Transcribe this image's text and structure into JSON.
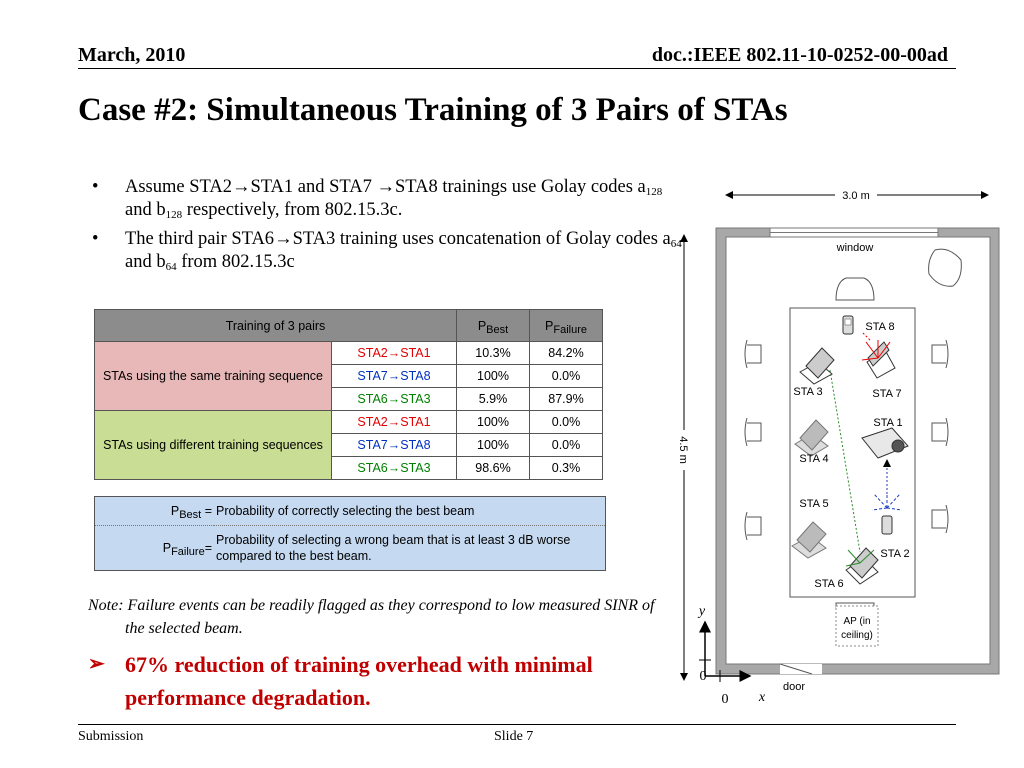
{
  "header": {
    "date": "March, 2010",
    "doc": "doc.:IEEE 802.11-10-0252-00-00ad"
  },
  "title": "Case #2: Simultaneous Training of 3 Pairs of STAs",
  "bullets": [
    {
      "p1": "Assume STA2",
      "p2": "STA1  and STA7 ",
      "p3": "STA8 trainings use Golay codes a",
      "s1": "128",
      "p4": "  and b",
      "s2": "128",
      "p5": " respectively, from 802.15.3c."
    },
    {
      "p1": "The third pair STA6",
      "p2": "STA3  training uses concatenation of Golay codes a",
      "s1": "64",
      "p3": " and b",
      "s2": "64",
      "p4": " from 802.15.3c"
    }
  ],
  "arrow": "→",
  "bullet_char": "•",
  "table1": {
    "header": {
      "pairs": "Training of 3 pairs",
      "pbest": "P",
      "pbest_sub": "Best",
      "pfail": "P",
      "pfail_sub": "Failure"
    },
    "groups": [
      {
        "label": "STAs using the same training sequence",
        "rows": [
          {
            "pair": "STA2→STA1",
            "pbest": "10.3%",
            "pfail": "84.2%"
          },
          {
            "pair": "STA7→STA8",
            "pbest": "100%",
            "pfail": "0.0%"
          },
          {
            "pair": "STA6→STA3",
            "pbest": "5.9%",
            "pfail": "87.9%"
          }
        ]
      },
      {
        "label": "STAs using different training sequences",
        "rows": [
          {
            "pair": "STA2→STA1",
            "pbest": "100%",
            "pfail": "0.0%"
          },
          {
            "pair": "STA7→STA8",
            "pbest": "100%",
            "pfail": "0.0%"
          },
          {
            "pair": "STA6→STA3",
            "pbest": "98.6%",
            "pfail": "0.3%"
          }
        ]
      }
    ],
    "colors": {
      "header": "#8c8c8c",
      "same": "#e8b8b8",
      "different": "#c9dd95",
      "red": "#e00000",
      "blue": "#0030c0",
      "green": "#008000"
    }
  },
  "table2": {
    "best": {
      "sym": "P",
      "sub": "Best",
      "eq": " =",
      "desc": "Probability of correctly selecting the best beam"
    },
    "fail": {
      "sym": "P",
      "sub": "Failure",
      "eq": "=",
      "desc": "Probability of selecting a wrong beam that is at least 3 dB worse compared to the best beam."
    }
  },
  "note": "Note:  Failure events can be readily flagged as they correspond to low measured SINR of the selected beam.",
  "conclusion": {
    "marker": "➢",
    "text": "67% reduction of training overhead with minimal performance degradation."
  },
  "diagram": {
    "width_label": "3.0 m",
    "height_label": "4.5 m",
    "window": "window",
    "door": "door",
    "ap": "AP (in ceiling)",
    "ap_line1": "AP (in",
    "ap_line2": "ceiling)",
    "axis_y": "y",
    "axis_x": "x",
    "origin_x": "0",
    "origin_y": "0",
    "stations": {
      "sta1": "STA 1",
      "sta2": "STA 2",
      "sta3": "STA 3",
      "sta4": "STA 4",
      "sta5": "STA 5",
      "sta6": "STA 6",
      "sta7": "STA 7",
      "sta8": "STA 8"
    }
  },
  "footer": {
    "left": "Submission",
    "center": "Slide 7"
  }
}
